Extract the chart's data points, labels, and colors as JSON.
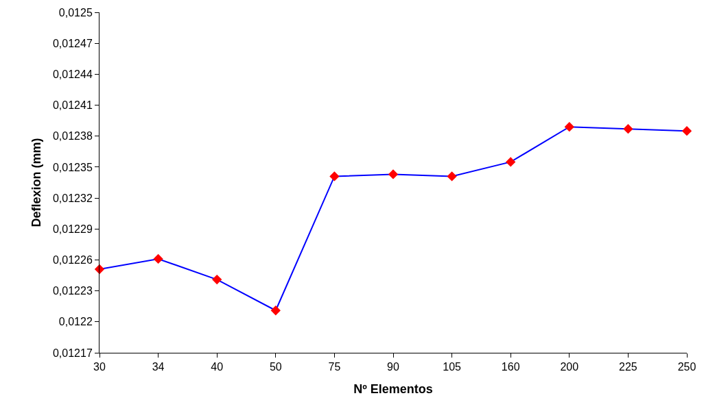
{
  "chart_data": {
    "type": "line",
    "xlabel": "Nº Elementos",
    "ylabel": "Deflexion (mm)",
    "categories": [
      "30",
      "34",
      "40",
      "50",
      "75",
      "90",
      "105",
      "160",
      "200",
      "225",
      "250"
    ],
    "series": [
      {
        "color": "#0000ff",
        "colors": [
          "#ff0000",
          "#ff0000",
          "#ff0000",
          "#ff0000",
          "#ff0000",
          "#ff0000",
          "#ff0000",
          "#ff0000",
          "#ff0000",
          "#ff0000",
          "#ff0000"
        ],
        "values": [
          0.012251,
          0.012261,
          0.012241,
          0.012211,
          0.012341,
          0.012343,
          0.012341,
          0.012355,
          0.012389,
          0.012387,
          0.012385
        ]
      }
    ],
    "marker": "diamond",
    "line_style": "solid",
    "ylim": [
      0.01217,
      0.0125
    ],
    "yticks": [
      {
        "value": 0.01217,
        "label": "0,01217"
      },
      {
        "value": 0.0122,
        "label": "0,0122"
      },
      {
        "value": 0.01223,
        "label": "0,01223"
      },
      {
        "value": 0.01226,
        "label": "0,01226"
      },
      {
        "value": 0.01229,
        "label": "0,01229"
      },
      {
        "value": 0.01232,
        "label": "0,01232"
      },
      {
        "value": 0.01235,
        "label": "0,01235"
      },
      {
        "value": 0.01238,
        "label": "0,01238"
      },
      {
        "value": 0.01241,
        "label": "0,01241"
      },
      {
        "value": 0.01244,
        "label": "0,01244"
      },
      {
        "value": 0.01247,
        "label": "0,01247"
      },
      {
        "value": 0.0125,
        "label": "0,0125"
      }
    ]
  }
}
